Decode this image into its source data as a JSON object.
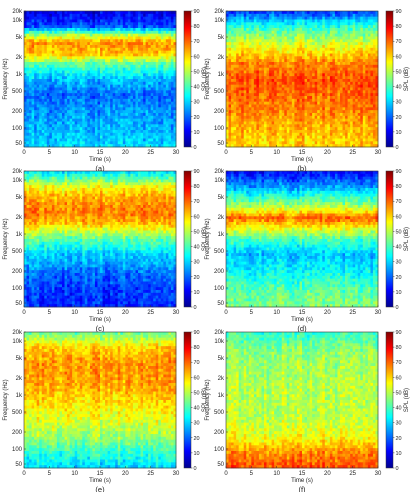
{
  "figure": {
    "y_tick_labels": [
      "20k",
      "10k",
      "5k",
      "2k",
      "1k",
      "500",
      "200",
      "100",
      "50"
    ],
    "x_tick_labels": [
      "0",
      "5",
      "10",
      "15",
      "20",
      "25",
      "30"
    ],
    "ylabel": "Frequency (Hz)",
    "xlabel": "Time (s)",
    "colorbar_label": "SPL (dB)",
    "colorbar_ticks": [
      "90",
      "80",
      "70",
      "60",
      "50",
      "40",
      "30",
      "20",
      "10",
      "0"
    ]
  },
  "colormap": [
    "#00008f",
    "#0000ff",
    "#0080ff",
    "#00ffff",
    "#80ff80",
    "#ffff00",
    "#ff8000",
    "#ff0000",
    "#800000"
  ],
  "chart_data": [
    {
      "type": "heatmap",
      "panel_label": "(a)",
      "x": [
        0,
        30
      ],
      "xlim": [
        0,
        30
      ],
      "y": [
        50,
        20000
      ],
      "ylim": [
        50,
        20000
      ],
      "yscale": "log",
      "zlim": [
        0,
        90
      ],
      "profile": [
        {
          "freq": 50,
          "spl": 30
        },
        {
          "freq": 100,
          "spl": 27
        },
        {
          "freq": 200,
          "spl": 25
        },
        {
          "freq": 500,
          "spl": 20
        },
        {
          "freq": 1000,
          "spl": 28
        },
        {
          "freq": 2000,
          "spl": 42
        },
        {
          "freq": 3000,
          "spl": 62
        },
        {
          "freq": 5000,
          "spl": 65
        },
        {
          "freq": 7000,
          "spl": 48
        },
        {
          "freq": 10000,
          "spl": 18
        },
        {
          "freq": 20000,
          "spl": 8
        }
      ]
    },
    {
      "type": "heatmap",
      "panel_label": "(b)",
      "x": [
        0,
        30
      ],
      "xlim": [
        0,
        30
      ],
      "y": [
        50,
        20000
      ],
      "ylim": [
        50,
        20000
      ],
      "yscale": "log",
      "zlim": [
        0,
        90
      ],
      "profile": [
        {
          "freq": 50,
          "spl": 60
        },
        {
          "freq": 100,
          "spl": 62
        },
        {
          "freq": 200,
          "spl": 66
        },
        {
          "freq": 500,
          "spl": 70
        },
        {
          "freq": 1000,
          "spl": 72
        },
        {
          "freq": 2000,
          "spl": 67
        },
        {
          "freq": 5000,
          "spl": 52
        },
        {
          "freq": 10000,
          "spl": 38
        },
        {
          "freq": 20000,
          "spl": 15
        }
      ]
    },
    {
      "type": "heatmap",
      "panel_label": "(c)",
      "x": [
        0,
        30
      ],
      "xlim": [
        0,
        30
      ],
      "y": [
        50,
        20000
      ],
      "ylim": [
        50,
        20000
      ],
      "yscale": "log",
      "zlim": [
        0,
        90
      ],
      "profile": [
        {
          "freq": 50,
          "spl": 15
        },
        {
          "freq": 100,
          "spl": 16
        },
        {
          "freq": 200,
          "spl": 20
        },
        {
          "freq": 500,
          "spl": 30
        },
        {
          "freq": 1000,
          "spl": 42
        },
        {
          "freq": 2000,
          "spl": 62
        },
        {
          "freq": 3000,
          "spl": 68
        },
        {
          "freq": 5000,
          "spl": 65
        },
        {
          "freq": 7000,
          "spl": 62
        },
        {
          "freq": 10000,
          "spl": 55
        },
        {
          "freq": 20000,
          "spl": 30
        }
      ]
    },
    {
      "type": "heatmap",
      "panel_label": "(d)",
      "x": [
        0,
        30
      ],
      "xlim": [
        0,
        30
      ],
      "y": [
        50,
        20000
      ],
      "ylim": [
        50,
        20000
      ],
      "yscale": "log",
      "zlim": [
        0,
        90
      ],
      "profile": [
        {
          "freq": 50,
          "spl": 45
        },
        {
          "freq": 100,
          "spl": 42
        },
        {
          "freq": 200,
          "spl": 35
        },
        {
          "freq": 500,
          "spl": 28
        },
        {
          "freq": 1000,
          "spl": 40
        },
        {
          "freq": 2000,
          "spl": 62
        },
        {
          "freq": 2500,
          "spl": 70
        },
        {
          "freq": 4000,
          "spl": 50
        },
        {
          "freq": 10000,
          "spl": 25
        },
        {
          "freq": 20000,
          "spl": 10
        }
      ]
    },
    {
      "type": "heatmap",
      "panel_label": "(e)",
      "x": [
        0,
        30
      ],
      "xlim": [
        0,
        30
      ],
      "y": [
        50,
        20000
      ],
      "ylim": [
        50,
        20000
      ],
      "yscale": "log",
      "zlim": [
        0,
        90
      ],
      "profile": [
        {
          "freq": 50,
          "spl": 30
        },
        {
          "freq": 100,
          "spl": 38
        },
        {
          "freq": 200,
          "spl": 48
        },
        {
          "freq": 500,
          "spl": 55
        },
        {
          "freq": 1000,
          "spl": 60
        },
        {
          "freq": 2000,
          "spl": 64
        },
        {
          "freq": 5000,
          "spl": 66
        },
        {
          "freq": 10000,
          "spl": 60
        },
        {
          "freq": 20000,
          "spl": 42
        }
      ]
    },
    {
      "type": "heatmap",
      "panel_label": "(f)",
      "x": [
        0,
        30
      ],
      "xlim": [
        0,
        30
      ],
      "y": [
        50,
        20000
      ],
      "ylim": [
        50,
        20000
      ],
      "yscale": "log",
      "zlim": [
        0,
        90
      ],
      "profile": [
        {
          "freq": 50,
          "spl": 72
        },
        {
          "freq": 100,
          "spl": 66
        },
        {
          "freq": 200,
          "spl": 55
        },
        {
          "freq": 500,
          "spl": 50
        },
        {
          "freq": 1000,
          "spl": 50
        },
        {
          "freq": 2000,
          "spl": 50
        },
        {
          "freq": 5000,
          "spl": 48
        },
        {
          "freq": 10000,
          "spl": 45
        },
        {
          "freq": 20000,
          "spl": 38
        }
      ]
    }
  ]
}
